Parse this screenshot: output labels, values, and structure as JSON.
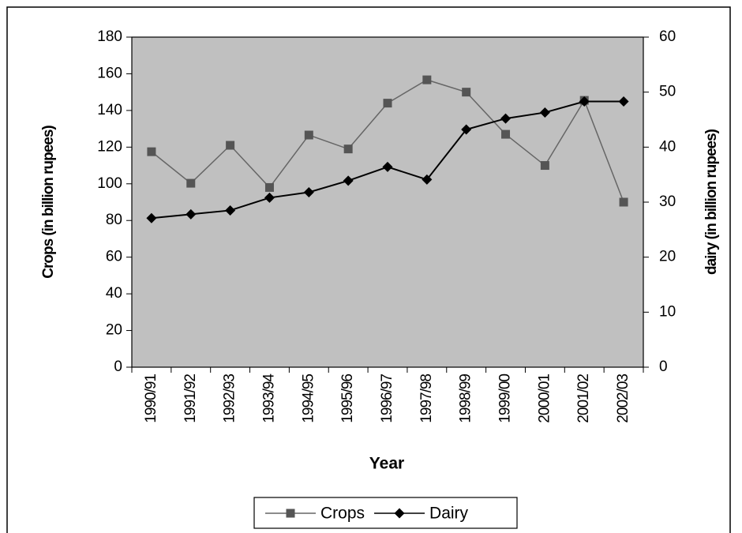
{
  "chart_data": {
    "type": "line",
    "xlabel": "Year",
    "ylabel": "Crops (in billion rupees)",
    "y2label": "dairy (in billion rupees)",
    "categories": [
      "1990/91",
      "1991/92",
      "1992/93",
      "1993/94",
      "1994/95",
      "1995/96",
      "1996/97",
      "1997/98",
      "1998/99",
      "1999/00",
      "2000/01",
      "2001/02",
      "2002/03"
    ],
    "series": [
      {
        "name": "Crops",
        "color": "#555555",
        "marker": "square",
        "values": [
          117.5,
          100.3,
          121,
          98,
          126.6,
          119,
          144,
          156.7,
          150,
          127,
          110,
          145.5,
          90
        ]
      },
      {
        "name": "Dairy",
        "color": "#000000",
        "marker": "diamond",
        "axis": "y2",
        "values": [
          27.1,
          27.8,
          28.5,
          30.8,
          31.8,
          33.9,
          36.4,
          34.1,
          43.2,
          45.2,
          46.3,
          48.3,
          48.3
        ]
      }
    ],
    "ylim": [
      0,
      180
    ],
    "yticks": [
      0,
      20,
      40,
      60,
      80,
      100,
      120,
      140,
      160,
      180
    ],
    "y2lim": [
      0,
      60
    ],
    "y2ticks": [
      0,
      10,
      20,
      30,
      40,
      50,
      60
    ],
    "background": "#c0c0c0",
    "legend": "bottom"
  }
}
